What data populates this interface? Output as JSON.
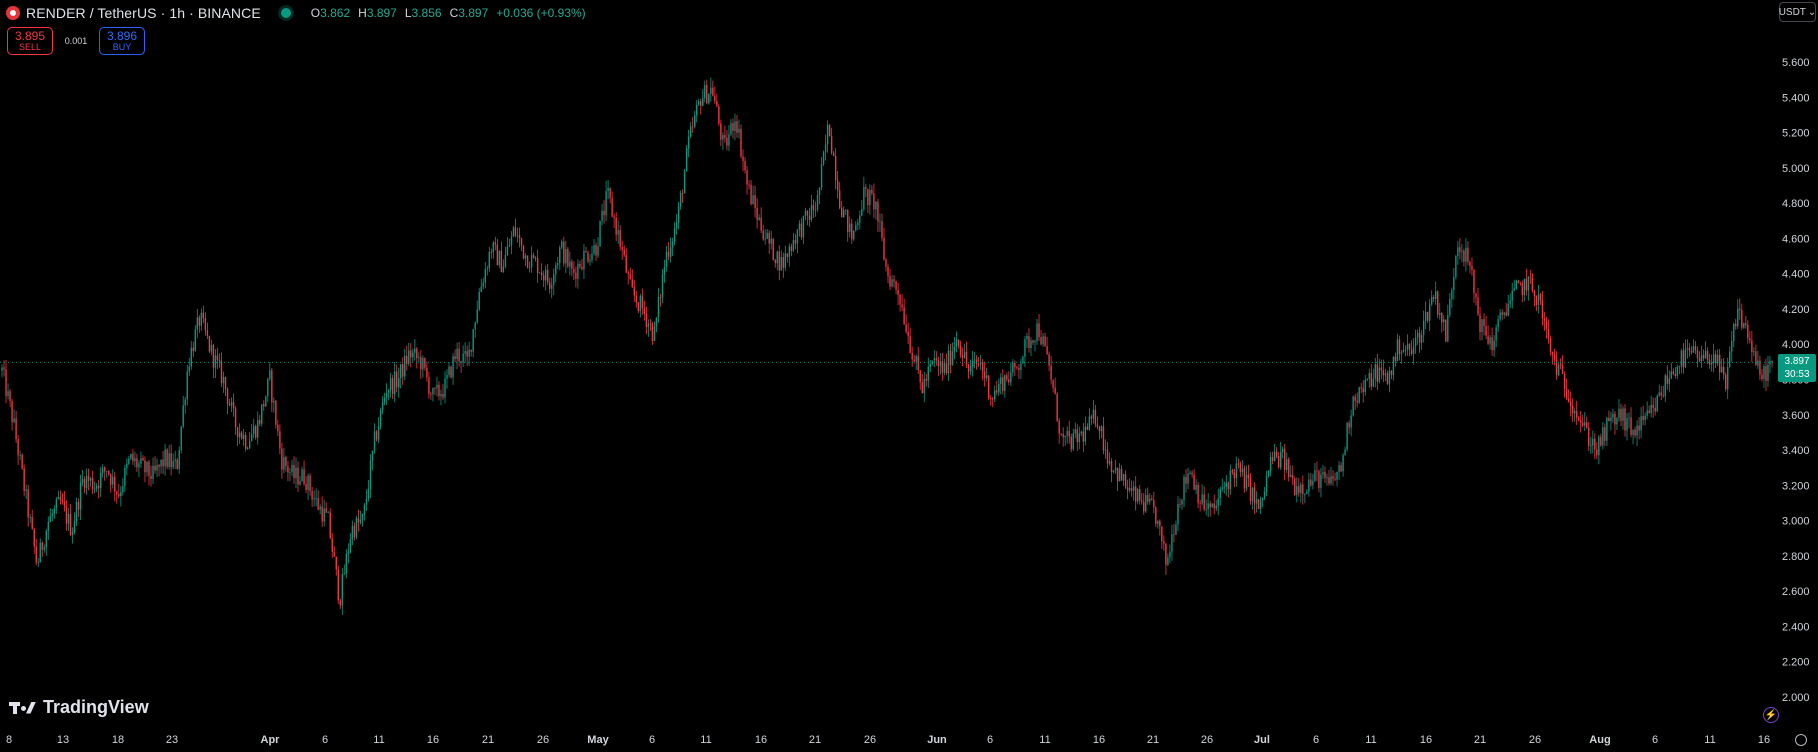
{
  "header": {
    "symbol_title": "RENDER / TetherUS · 1h · BINANCE",
    "ohlc": {
      "o_label": "O",
      "o_value": "3.862",
      "h_label": "H",
      "h_value": "3.897",
      "l_label": "L",
      "l_value": "3.856",
      "c_label": "C",
      "c_value": "3.897",
      "change": "+0.036 (+0.93%)"
    }
  },
  "trade": {
    "sell_price": "3.895",
    "sell_label": "SELL",
    "spread": "0.001",
    "buy_price": "3.896",
    "buy_label": "BUY"
  },
  "currency_selector": {
    "label": "USDT"
  },
  "price_tag": {
    "price": "3.897",
    "countdown": "30:53"
  },
  "watermark": {
    "text": "TradingView"
  },
  "colors": {
    "up": "#089981",
    "down": "#f23645",
    "background": "#000000",
    "axis_text": "#d1d4dc",
    "last_price_line": "#089981"
  },
  "chart_data": {
    "type": "candlestick",
    "title": "",
    "xlabel": "",
    "ylabel": "",
    "ylim": [
      1.8,
      5.8
    ],
    "y_ticks": [
      "5.600",
      "5.400",
      "5.200",
      "5.000",
      "4.800",
      "4.600",
      "4.400",
      "4.200",
      "4.000",
      "3.800",
      "3.600",
      "3.400",
      "3.200",
      "3.000",
      "2.800",
      "2.600",
      "2.400",
      "2.200",
      "2.000"
    ],
    "x_ticks": [
      {
        "label": "8",
        "bold": false
      },
      {
        "label": "13",
        "bold": false
      },
      {
        "label": "18",
        "bold": false
      },
      {
        "label": "23",
        "bold": false
      },
      {
        "label": "Apr",
        "bold": true
      },
      {
        "label": "6",
        "bold": false
      },
      {
        "label": "11",
        "bold": false
      },
      {
        "label": "16",
        "bold": false
      },
      {
        "label": "21",
        "bold": false
      },
      {
        "label": "26",
        "bold": false
      },
      {
        "label": "May",
        "bold": true
      },
      {
        "label": "6",
        "bold": false
      },
      {
        "label": "11",
        "bold": false
      },
      {
        "label": "16",
        "bold": false
      },
      {
        "label": "21",
        "bold": false
      },
      {
        "label": "26",
        "bold": false
      },
      {
        "label": "Jun",
        "bold": true
      },
      {
        "label": "6",
        "bold": false
      },
      {
        "label": "11",
        "bold": false
      },
      {
        "label": "16",
        "bold": false
      },
      {
        "label": "21",
        "bold": false
      },
      {
        "label": "26",
        "bold": false
      },
      {
        "label": "Jul",
        "bold": true
      },
      {
        "label": "6",
        "bold": false
      },
      {
        "label": "11",
        "bold": false
      },
      {
        "label": "16",
        "bold": false
      },
      {
        "label": "21",
        "bold": false
      },
      {
        "label": "26",
        "bold": false
      },
      {
        "label": "Aug",
        "bold": true
      },
      {
        "label": "6",
        "bold": false
      },
      {
        "label": "11",
        "bold": false
      },
      {
        "label": "16",
        "bold": false
      }
    ],
    "last_price": 3.897,
    "price_path": [
      [
        "2024-03-08",
        3.85
      ],
      [
        "2024-03-09",
        3.55
      ],
      [
        "2024-03-10",
        3.15
      ],
      [
        "2024-03-11",
        2.75
      ],
      [
        "2024-03-12",
        3.0
      ],
      [
        "2024-03-13",
        3.1
      ],
      [
        "2024-03-14",
        2.95
      ],
      [
        "2024-03-15",
        3.25
      ],
      [
        "2024-03-16",
        3.2
      ],
      [
        "2024-03-17",
        3.3
      ],
      [
        "2024-03-18",
        3.15
      ],
      [
        "2024-03-19",
        3.35
      ],
      [
        "2024-03-20",
        3.3
      ],
      [
        "2024-03-21",
        3.25
      ],
      [
        "2024-03-22",
        3.35
      ],
      [
        "2024-03-23",
        3.3
      ],
      [
        "2024-03-24",
        3.9
      ],
      [
        "2024-03-25",
        4.15
      ],
      [
        "2024-03-26",
        3.95
      ],
      [
        "2024-03-27",
        3.8
      ],
      [
        "2024-03-28",
        3.55
      ],
      [
        "2024-03-29",
        3.45
      ],
      [
        "2024-03-30",
        3.55
      ],
      [
        "2024-03-31",
        3.8
      ],
      [
        "2024-04-01",
        3.35
      ],
      [
        "2024-04-02",
        3.25
      ],
      [
        "2024-04-03",
        3.25
      ],
      [
        "2024-04-04",
        3.1
      ],
      [
        "2024-04-05",
        3.0
      ],
      [
        "2024-04-06",
        2.55
      ],
      [
        "2024-04-07",
        2.95
      ],
      [
        "2024-04-08",
        3.0
      ],
      [
        "2024-04-09",
        3.45
      ],
      [
        "2024-04-10",
        3.75
      ],
      [
        "2024-04-11",
        3.8
      ],
      [
        "2024-04-12",
        3.95
      ],
      [
        "2024-04-13",
        3.9
      ],
      [
        "2024-04-14",
        3.7
      ],
      [
        "2024-04-15",
        3.75
      ],
      [
        "2024-04-16",
        3.95
      ],
      [
        "2024-04-17",
        3.9
      ],
      [
        "2024-04-18",
        4.3
      ],
      [
        "2024-04-19",
        4.55
      ],
      [
        "2024-04-20",
        4.45
      ],
      [
        "2024-04-21",
        4.65
      ],
      [
        "2024-04-22",
        4.5
      ],
      [
        "2024-04-23",
        4.45
      ],
      [
        "2024-04-24",
        4.35
      ],
      [
        "2024-04-25",
        4.55
      ],
      [
        "2024-04-26",
        4.4
      ],
      [
        "2024-04-27",
        4.5
      ],
      [
        "2024-04-28",
        4.55
      ],
      [
        "2024-04-29",
        4.85
      ],
      [
        "2024-04-30",
        4.6
      ],
      [
        "2024-05-01",
        4.3
      ],
      [
        "2024-05-02",
        4.2
      ],
      [
        "2024-05-03",
        4.05
      ],
      [
        "2024-05-04",
        4.5
      ],
      [
        "2024-05-05",
        4.7
      ],
      [
        "2024-05-06",
        5.15
      ],
      [
        "2024-05-07",
        5.4
      ],
      [
        "2024-05-08",
        5.45
      ],
      [
        "2024-05-09",
        5.1
      ],
      [
        "2024-05-10",
        5.3
      ],
      [
        "2024-05-11",
        4.9
      ],
      [
        "2024-05-12",
        4.7
      ],
      [
        "2024-05-13",
        4.55
      ],
      [
        "2024-05-14",
        4.45
      ],
      [
        "2024-05-15",
        4.6
      ],
      [
        "2024-05-16",
        4.7
      ],
      [
        "2024-05-17",
        4.8
      ],
      [
        "2024-05-18",
        5.25
      ],
      [
        "2024-05-19",
        4.8
      ],
      [
        "2024-05-20",
        4.6
      ],
      [
        "2024-05-21",
        4.85
      ],
      [
        "2024-05-22",
        4.8
      ],
      [
        "2024-05-23",
        4.4
      ],
      [
        "2024-05-24",
        4.3
      ],
      [
        "2024-05-25",
        4.0
      ],
      [
        "2024-05-26",
        3.75
      ],
      [
        "2024-05-27",
        3.9
      ],
      [
        "2024-05-28",
        3.85
      ],
      [
        "2024-05-29",
        4.05
      ],
      [
        "2024-05-30",
        3.85
      ],
      [
        "2024-05-31",
        3.9
      ],
      [
        "2024-06-01",
        3.7
      ],
      [
        "2024-06-02",
        3.8
      ],
      [
        "2024-06-03",
        3.85
      ],
      [
        "2024-06-04",
        4.0
      ],
      [
        "2024-06-05",
        4.1
      ],
      [
        "2024-06-06",
        3.85
      ],
      [
        "2024-06-07",
        3.45
      ],
      [
        "2024-06-08",
        3.45
      ],
      [
        "2024-06-09",
        3.5
      ],
      [
        "2024-06-10",
        3.6
      ],
      [
        "2024-06-11",
        3.35
      ],
      [
        "2024-06-12",
        3.25
      ],
      [
        "2024-06-13",
        3.15
      ],
      [
        "2024-06-14",
        3.1
      ],
      [
        "2024-06-15",
        3.05
      ],
      [
        "2024-06-16",
        2.75
      ],
      [
        "2024-06-17",
        3.1
      ],
      [
        "2024-06-18",
        3.3
      ],
      [
        "2024-06-19",
        3.1
      ],
      [
        "2024-06-20",
        3.05
      ],
      [
        "2024-06-21",
        3.2
      ],
      [
        "2024-06-22",
        3.3
      ],
      [
        "2024-06-23",
        3.2
      ],
      [
        "2024-06-24",
        3.05
      ],
      [
        "2024-06-25",
        3.35
      ],
      [
        "2024-06-26",
        3.35
      ],
      [
        "2024-06-27",
        3.2
      ],
      [
        "2024-06-28",
        3.2
      ],
      [
        "2024-06-29",
        3.25
      ],
      [
        "2024-06-30",
        3.2
      ],
      [
        "2024-07-01",
        3.3
      ],
      [
        "2024-07-02",
        3.7
      ],
      [
        "2024-07-03",
        3.75
      ],
      [
        "2024-07-04",
        3.85
      ],
      [
        "2024-07-05",
        3.8
      ],
      [
        "2024-07-06",
        4.0
      ],
      [
        "2024-07-07",
        3.95
      ],
      [
        "2024-07-08",
        4.1
      ],
      [
        "2024-07-09",
        4.3
      ],
      [
        "2024-07-10",
        4.05
      ],
      [
        "2024-07-11",
        4.6
      ],
      [
        "2024-07-12",
        4.45
      ],
      [
        "2024-07-13",
        4.1
      ],
      [
        "2024-07-14",
        4.0
      ],
      [
        "2024-07-15",
        4.2
      ],
      [
        "2024-07-16",
        4.3
      ],
      [
        "2024-07-17",
        4.35
      ],
      [
        "2024-07-18",
        4.25
      ],
      [
        "2024-07-19",
        3.95
      ],
      [
        "2024-07-20",
        3.8
      ],
      [
        "2024-07-21",
        3.65
      ],
      [
        "2024-07-22",
        3.5
      ],
      [
        "2024-07-23",
        3.4
      ],
      [
        "2024-07-24",
        3.55
      ],
      [
        "2024-07-25",
        3.6
      ],
      [
        "2024-07-26",
        3.5
      ],
      [
        "2024-07-27",
        3.55
      ],
      [
        "2024-07-28",
        3.65
      ],
      [
        "2024-07-29",
        3.8
      ],
      [
        "2024-07-30",
        3.9
      ],
      [
        "2024-07-31",
        3.95
      ],
      [
        "2024-08-01",
        3.9
      ],
      [
        "2024-08-02",
        3.95
      ],
      [
        "2024-08-03",
        3.75
      ],
      [
        "2024-08-04",
        4.2
      ],
      [
        "2024-08-05",
        4.05
      ],
      [
        "2024-08-06",
        3.8
      ],
      [
        "2024-08-07",
        3.9
      ]
    ]
  }
}
